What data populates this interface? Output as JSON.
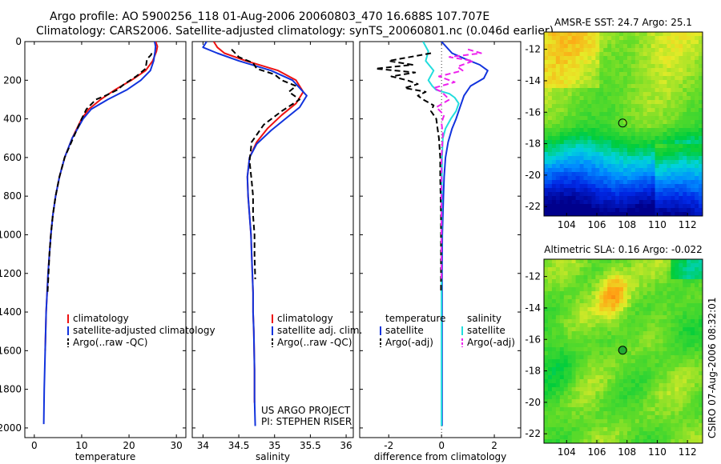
{
  "header": {
    "line1": "Argo profile: AO 5900256_118 01-Aug-2006 20060803_470 16.688S 107.707E",
    "line2": "Climatology: CARS2006. Satellite-adjusted climatology: synTS_20060801.nc (0.046d earlier)"
  },
  "side_label": "CSIRO 07-Aug-2006 08:32:01",
  "colors": {
    "climatology": "#ee1111",
    "satellite": "#1133dd",
    "argo": "#000000",
    "sal_satellite": "#22dddd",
    "sal_argo": "#ee22ee"
  },
  "chart_data": [
    {
      "type": "line",
      "id": "temp",
      "xlabel": "temperature",
      "xlim": [
        -2,
        32
      ],
      "xticks": [
        0,
        10,
        20,
        30
      ],
      "ylim": [
        2050,
        0
      ],
      "yticks": [
        0,
        200,
        400,
        600,
        800,
        1000,
        1200,
        1400,
        1600,
        1800,
        2000
      ],
      "legend": [
        "climatology",
        "satellite-adjusted climatology",
        "Argo(..raw -QC)"
      ],
      "series": [
        {
          "name": "climatology",
          "color": "#ee1111",
          "style": "solid",
          "x": [
            25.6,
            26.0,
            25.8,
            25.0,
            23.5,
            20.5,
            17.0,
            14.0,
            11.5,
            10.0,
            8.0,
            6.4,
            5.3,
            4.5,
            3.9,
            3.5,
            3.2,
            2.9,
            2.7,
            2.5,
            2.4,
            2.3
          ],
          "y": [
            0,
            25,
            50,
            100,
            150,
            200,
            250,
            300,
            350,
            400,
            500,
            600,
            700,
            800,
            900,
            1000,
            1100,
            1200,
            1300,
            1400,
            1500,
            1600
          ]
        },
        {
          "name": "satellite-adjusted climatology",
          "color": "#1133dd",
          "style": "solid",
          "x": [
            25.4,
            25.6,
            25.5,
            25.2,
            24.5,
            22.5,
            19.5,
            15.5,
            12.0,
            10.3,
            8.0,
            6.4,
            5.3,
            4.5,
            3.9,
            3.5,
            3.2,
            2.9,
            2.7,
            2.5,
            2.4,
            2.3,
            2.2,
            2.1,
            2.0
          ],
          "y": [
            0,
            25,
            50,
            100,
            150,
            200,
            250,
            300,
            350,
            400,
            500,
            600,
            700,
            800,
            900,
            1000,
            1100,
            1200,
            1300,
            1400,
            1500,
            1600,
            1700,
            1800,
            1980
          ]
        },
        {
          "name": "Argo(..raw -QC)",
          "color": "#000000",
          "style": "dashed",
          "x": [
            24.8,
            24.6,
            23.8,
            23.5,
            21.5,
            19.0,
            17.5,
            15.0,
            13.0,
            11.0,
            10.0,
            8.2,
            6.4,
            5.3,
            4.5,
            3.9,
            3.5,
            3.2,
            3.0,
            2.8
          ],
          "y": [
            60,
            70,
            90,
            140,
            180,
            220,
            250,
            280,
            300,
            350,
            400,
            500,
            600,
            700,
            800,
            900,
            1000,
            1100,
            1200,
            1300
          ]
        }
      ]
    },
    {
      "type": "line",
      "id": "sal",
      "xlabel": "salinity",
      "xlim": [
        33.85,
        36.1
      ],
      "xticks": [
        34,
        34.5,
        35,
        35.5,
        36
      ],
      "xticklabels": [
        "34",
        "34.5",
        "35",
        "35.5",
        "36"
      ],
      "ylim": [
        2050,
        0
      ],
      "legend": [
        "climatology",
        "satellite adj. clim.",
        "Argo(..raw -QC)"
      ],
      "annotation": [
        "US ARGO PROJECT",
        "PI: STEPHEN RISER"
      ],
      "series": [
        {
          "name": "climatology",
          "color": "#ee1111",
          "style": "solid",
          "x": [
            34.15,
            34.2,
            34.3,
            34.6,
            35.05,
            35.3,
            35.4,
            35.3,
            35.1,
            34.9,
            34.75,
            34.65,
            34.62,
            34.63,
            34.65,
            34.67,
            34.68,
            34.69,
            34.7,
            34.7,
            34.71,
            34.72,
            34.72
          ],
          "y": [
            0,
            30,
            60,
            100,
            150,
            200,
            260,
            320,
            380,
            450,
            520,
            600,
            700,
            800,
            900,
            1000,
            1100,
            1200,
            1300,
            1400,
            1500,
            1700,
            1870
          ]
        },
        {
          "name": "satellite adj. clim.",
          "color": "#1133dd",
          "style": "solid",
          "x": [
            34.05,
            34.0,
            34.2,
            34.5,
            34.95,
            35.25,
            35.45,
            35.35,
            35.15,
            34.95,
            34.75,
            34.65,
            34.62,
            34.63,
            34.65,
            34.67,
            34.68,
            34.69,
            34.7,
            34.7,
            34.71,
            34.72,
            34.72,
            34.73
          ],
          "y": [
            0,
            30,
            60,
            100,
            150,
            200,
            280,
            340,
            400,
            460,
            530,
            600,
            700,
            800,
            900,
            1000,
            1100,
            1200,
            1300,
            1400,
            1500,
            1700,
            1850,
            1990
          ]
        },
        {
          "name": "Argo(..raw -QC)",
          "color": "#000000",
          "style": "dashed",
          "x": [
            34.4,
            34.45,
            34.5,
            34.7,
            34.75,
            35.0,
            35.1,
            35.3,
            35.2,
            35.35,
            35.1,
            34.85,
            34.68,
            34.65,
            34.68,
            34.7,
            34.7,
            34.72,
            34.72,
            34.73
          ],
          "y": [
            40,
            60,
            80,
            110,
            140,
            170,
            200,
            230,
            260,
            300,
            360,
            430,
            520,
            620,
            720,
            800,
            900,
            1000,
            1100,
            1230
          ]
        }
      ]
    },
    {
      "type": "line",
      "id": "diff",
      "xlabel": "difference from climatology",
      "xlim": [
        -3.1,
        3.0
      ],
      "xticks": [
        -2,
        0,
        2
      ],
      "ylim": [
        2050,
        0
      ],
      "legend_headers": [
        "temperature",
        "salinity"
      ],
      "legend": [
        "satellite",
        "Argo(-adj)",
        "satellite",
        "Argo(-adj)"
      ],
      "series": [
        {
          "name": "temperature satellite",
          "color": "#1133dd",
          "style": "solid",
          "x": [
            0.0,
            0.4,
            0.9,
            1.45,
            1.75,
            1.6,
            1.1,
            0.85,
            0.7,
            0.55,
            0.4,
            0.25,
            0.15,
            0.1,
            0.07,
            0.05,
            0.03,
            0.02,
            0.02,
            0.02,
            0.02
          ],
          "y": [
            0,
            60,
            90,
            120,
            150,
            190,
            230,
            280,
            340,
            400,
            450,
            520,
            600,
            700,
            800,
            900,
            1000,
            1200,
            1400,
            1700,
            1990
          ]
        },
        {
          "name": "salinity satellite",
          "color": "#22dddd",
          "style": "solid",
          "x": [
            -0.7,
            -0.5,
            -0.6,
            -0.3,
            -0.5,
            -0.35,
            -0.2,
            0.3,
            0.5,
            0.65,
            0.55,
            0.35,
            0.15,
            0.05,
            0.02,
            0.01,
            0.0,
            0.0,
            0.0
          ],
          "y": [
            0,
            50,
            100,
            150,
            200,
            230,
            250,
            270,
            290,
            320,
            360,
            400,
            450,
            500,
            600,
            800,
            1100,
            1500,
            1990
          ]
        },
        {
          "name": "temperature Argo(-adj)",
          "color": "#000000",
          "style": "dashed",
          "x": [
            -0.4,
            -1.2,
            -2.0,
            -1.1,
            -2.5,
            -1.0,
            -1.9,
            -1.3,
            -0.9,
            -1.4,
            -0.6,
            -0.9,
            -0.7,
            -0.3,
            -0.4,
            -0.2,
            -0.15,
            -0.1,
            -0.05,
            -0.05,
            -0.02,
            -0.02
          ],
          "y": [
            60,
            80,
            100,
            120,
            140,
            160,
            180,
            200,
            220,
            240,
            260,
            280,
            300,
            330,
            360,
            400,
            450,
            500,
            600,
            700,
            900,
            1300
          ]
        },
        {
          "name": "salinity Argo(-adj)",
          "color": "#ee22ee",
          "style": "dashed",
          "x": [
            1.0,
            1.5,
            0.3,
            1.2,
            0.6,
            0.8,
            -0.1,
            0.5,
            -0.3,
            0.0,
            0.3,
            -0.2,
            0.1,
            0.0,
            0.05,
            0.0,
            0.0,
            0.0,
            0.0
          ],
          "y": [
            40,
            60,
            80,
            100,
            130,
            150,
            180,
            210,
            240,
            260,
            300,
            340,
            380,
            420,
            480,
            600,
            800,
            1000,
            1240
          ]
        }
      ]
    },
    {
      "type": "heatmap",
      "id": "sst",
      "title": "AMSR-E SST: 24.7 Argo: 25.1",
      "xlim": [
        102.5,
        113.0
      ],
      "ylim": [
        -22.6,
        -10.9
      ],
      "xticks": [
        104,
        106,
        108,
        110,
        112
      ],
      "yticks": [
        -12,
        -14,
        -16,
        -18,
        -20,
        -22
      ],
      "marker": {
        "x": 107.707,
        "y": -16.688
      }
    },
    {
      "type": "heatmap",
      "id": "sla",
      "title": "Altimetric SLA: 0.16 Argo: -0.022",
      "xlim": [
        102.5,
        113.0
      ],
      "ylim": [
        -22.6,
        -10.9
      ],
      "xticks": [
        104,
        106,
        108,
        110,
        112
      ],
      "yticks": [
        -12,
        -14,
        -16,
        -18,
        -20,
        -22
      ],
      "marker": {
        "x": 107.707,
        "y": -16.688
      }
    }
  ]
}
